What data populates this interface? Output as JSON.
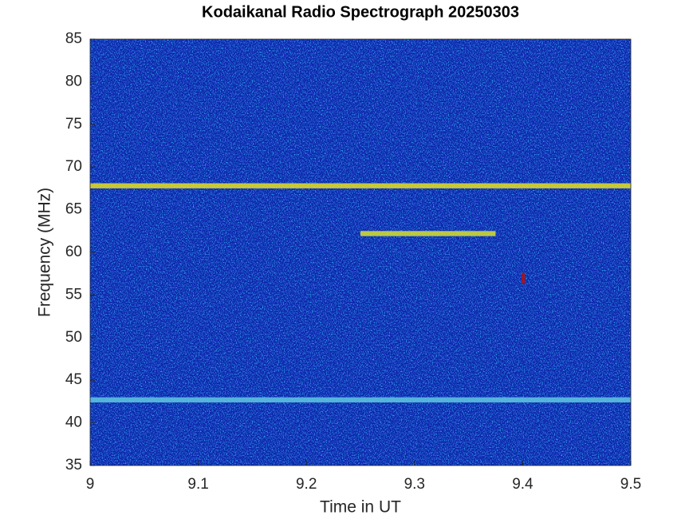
{
  "chart_data": {
    "type": "spectrogram",
    "title": "Kodaikanal Radio Spectrograph  20250303",
    "x_label": "Time in UT",
    "y_label": "Frequency (MHz)",
    "xlim": [
      9,
      9.5
    ],
    "xticks": [
      9,
      9.1,
      9.2,
      9.3,
      9.4,
      9.5
    ],
    "ylim": [
      35,
      85
    ],
    "yticks": [
      35,
      40,
      45,
      50,
      55,
      60,
      65,
      70,
      75,
      80,
      85
    ],
    "background_color": "#0b22a8",
    "bands": [
      {
        "x": [
          9,
          9.5
        ],
        "y": [
          67.5,
          68.1
        ],
        "color": "#e8e020"
      },
      {
        "x": [
          9.25,
          9.375
        ],
        "y": [
          61.9,
          62.5
        ],
        "color": "#d8e030"
      },
      {
        "x": [
          9,
          9.5
        ],
        "y": [
          42.4,
          43
        ],
        "color": "#60c8e0"
      },
      {
        "x": [
          9.399,
          9.402
        ],
        "y": [
          56.3,
          57.6
        ],
        "color": "#b01010"
      }
    ]
  }
}
